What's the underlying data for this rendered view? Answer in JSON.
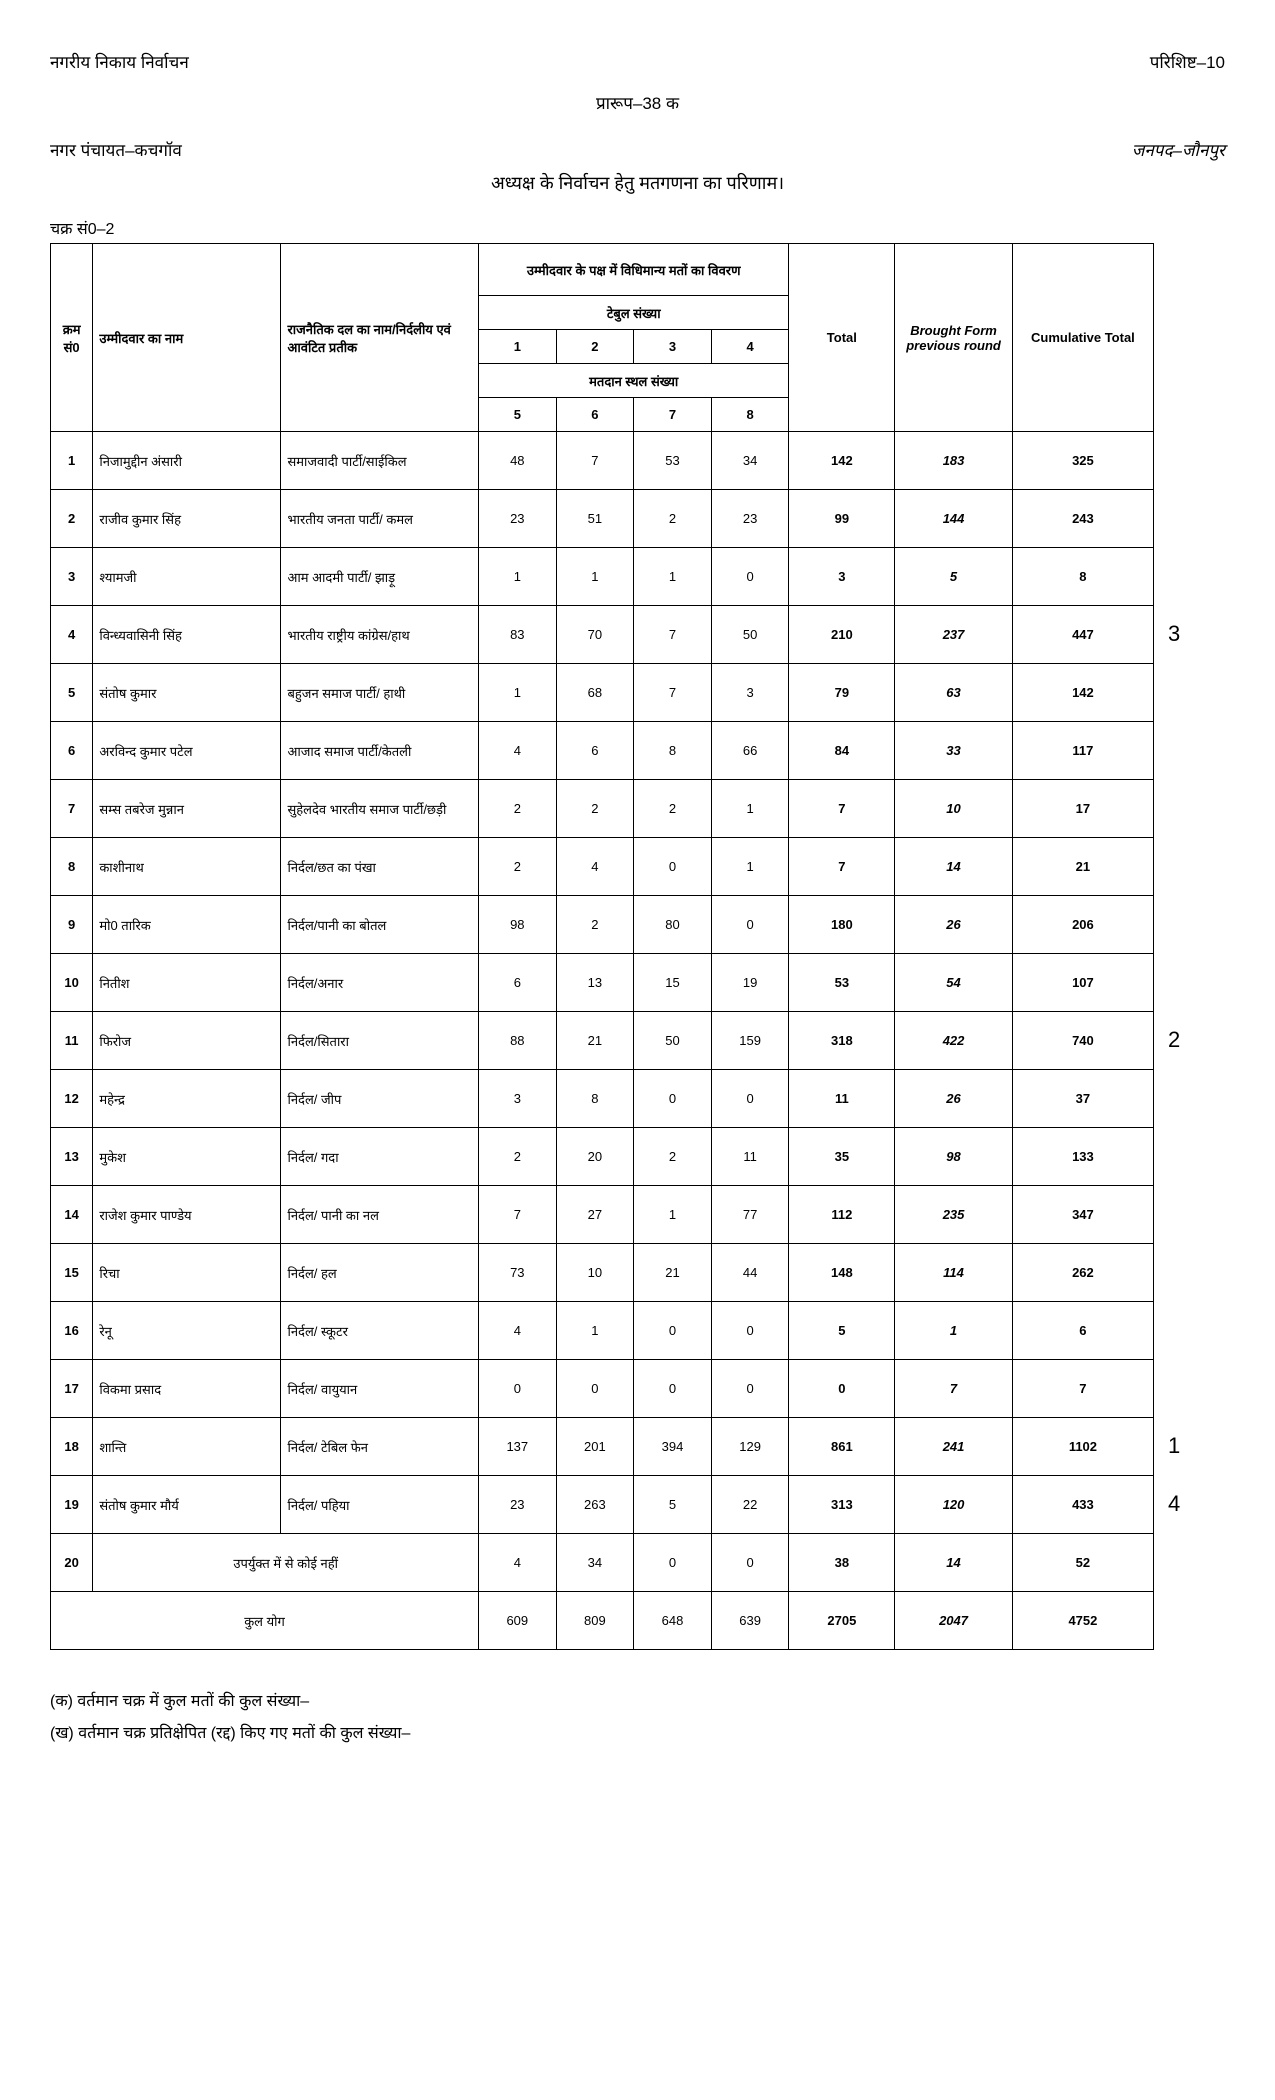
{
  "header": {
    "left": "नगरीय निकाय निर्वाचन",
    "right": "परिशिष्ट–10",
    "form_label": "प्रारूप–38 क",
    "panchayat": "नगर पंचायत–कचगॉव",
    "district": "जनपद–जौनपुर",
    "main_title": "अध्यक्ष के निर्वाचन हेतु मतगणना का परिणाम।",
    "round_label": "चक्र सं0–2"
  },
  "columns": {
    "sn": "क्रम सं0",
    "candidate": "उम्मीदवार का नाम",
    "party": "राजनैतिक दल का नाम/निर्दलीय एवं आवंटित प्रतीक",
    "votes_header": "उम्मीदवार के पक्ष में विधिमान्य मतों का विवरण",
    "table_no": "टेबुल संख्या",
    "booth_no": "मतदान स्थल संख्या",
    "t1": "1",
    "t2": "2",
    "t3": "3",
    "t4": "4",
    "b1": "5",
    "b2": "6",
    "b3": "7",
    "b4": "8",
    "total": "Total",
    "prev": "Brought Form previous round",
    "cum": "Cumulative Total"
  },
  "rows": [
    {
      "sn": "1",
      "name": "निजामुद्दीन अंसारी",
      "party": "समाजवादी पार्टी/साईकिल",
      "v": [
        48,
        7,
        53,
        34
      ],
      "total": 142,
      "prev": 183,
      "cum": 325,
      "rank": ""
    },
    {
      "sn": "2",
      "name": "राजीव कुमार सिंह",
      "party": "भारतीय जनता पार्टी/ कमल",
      "v": [
        23,
        51,
        2,
        23
      ],
      "total": 99,
      "prev": 144,
      "cum": 243,
      "rank": ""
    },
    {
      "sn": "3",
      "name": "श्यामजी",
      "party": "आम आदमी पार्टी/ झाड़ू",
      "v": [
        1,
        1,
        1,
        0
      ],
      "total": 3,
      "prev": 5,
      "cum": 8,
      "rank": ""
    },
    {
      "sn": "4",
      "name": "विन्ध्यवासिनी सिंह",
      "party": "भारतीय राष्ट्रीय कांग्रेस/हाथ",
      "v": [
        83,
        70,
        7,
        50
      ],
      "total": 210,
      "prev": 237,
      "cum": 447,
      "rank": "3"
    },
    {
      "sn": "5",
      "name": "संतोष कुमार",
      "party": "बहुजन समाज पार्टी/ हाथी",
      "v": [
        1,
        68,
        7,
        3
      ],
      "total": 79,
      "prev": 63,
      "cum": 142,
      "rank": ""
    },
    {
      "sn": "6",
      "name": "अरविन्द कुमार पटेल",
      "party": "आजाद समाज पार्टी/केतली",
      "v": [
        4,
        6,
        8,
        66
      ],
      "total": 84,
      "prev": 33,
      "cum": 117,
      "rank": ""
    },
    {
      "sn": "7",
      "name": "सम्स तबरेज मुन्नान",
      "party": "सुहेलदेव भारतीय समाज पार्टी/छड़ी",
      "v": [
        2,
        2,
        2,
        1
      ],
      "total": 7,
      "prev": 10,
      "cum": 17,
      "rank": ""
    },
    {
      "sn": "8",
      "name": "काशीनाथ",
      "party": "निर्दल/छत का पंखा",
      "v": [
        2,
        4,
        0,
        1
      ],
      "total": 7,
      "prev": 14,
      "cum": 21,
      "rank": ""
    },
    {
      "sn": "9",
      "name": "मो0 तारिक",
      "party": "निर्दल/पानी का बोतल",
      "v": [
        98,
        2,
        80,
        0
      ],
      "total": 180,
      "prev": 26,
      "cum": 206,
      "rank": ""
    },
    {
      "sn": "10",
      "name": "नितीश",
      "party": "निर्दल/अनार",
      "v": [
        6,
        13,
        15,
        19
      ],
      "total": 53,
      "prev": 54,
      "cum": 107,
      "rank": ""
    },
    {
      "sn": "11",
      "name": "फिरोज",
      "party": "निर्दल/सितारा",
      "v": [
        88,
        21,
        50,
        159
      ],
      "total": 318,
      "prev": 422,
      "cum": 740,
      "rank": "2"
    },
    {
      "sn": "12",
      "name": "महेन्द्र",
      "party": "निर्दल/ जीप",
      "v": [
        3,
        8,
        0,
        0
      ],
      "total": 11,
      "prev": 26,
      "cum": 37,
      "rank": ""
    },
    {
      "sn": "13",
      "name": "मुकेश",
      "party": "निर्दल/ गदा",
      "v": [
        2,
        20,
        2,
        11
      ],
      "total": 35,
      "prev": 98,
      "cum": 133,
      "rank": ""
    },
    {
      "sn": "14",
      "name": "राजेश कुमार पाण्डेय",
      "party": "निर्दल/ पानी का नल",
      "v": [
        7,
        27,
        1,
        77
      ],
      "total": 112,
      "prev": 235,
      "cum": 347,
      "rank": ""
    },
    {
      "sn": "15",
      "name": "रिचा",
      "party": "निर्दल/ हल",
      "v": [
        73,
        10,
        21,
        44
      ],
      "total": 148,
      "prev": 114,
      "cum": 262,
      "rank": ""
    },
    {
      "sn": "16",
      "name": "रेनू",
      "party": "निर्दल/ स्कूटर",
      "v": [
        4,
        1,
        0,
        0
      ],
      "total": 5,
      "prev": 1,
      "cum": 6,
      "rank": ""
    },
    {
      "sn": "17",
      "name": "विकमा प्रसाद",
      "party": "निर्दल/ वायुयान",
      "v": [
        0,
        0,
        0,
        0
      ],
      "total": 0,
      "prev": 7,
      "cum": 7,
      "rank": ""
    },
    {
      "sn": "18",
      "name": "शान्ति",
      "party": "निर्दल/ टेबिल फेन",
      "v": [
        137,
        201,
        394,
        129
      ],
      "total": 861,
      "prev": 241,
      "cum": 1102,
      "rank": "1"
    },
    {
      "sn": "19",
      "name": "संतोष कुमार मौर्य",
      "party": "निर्दल/ पहिया",
      "v": [
        23,
        263,
        5,
        22
      ],
      "total": 313,
      "prev": 120,
      "cum": 433,
      "rank": "4"
    }
  ],
  "nota": {
    "sn": "20",
    "label": "उपर्युक्त में से कोई नहीं",
    "v": [
      4,
      34,
      0,
      0
    ],
    "total": 38,
    "prev": 14,
    "cum": 52
  },
  "grand": {
    "label": "कुल योग",
    "v": [
      609,
      809,
      648,
      639
    ],
    "total": 2705,
    "prev": 2047,
    "cum": 4752
  },
  "footer": {
    "a": "(क)  वर्तमान चक्र में कुल मतों की कुल संख्या–",
    "b": "(ख)  वर्तमान चक्र प्रतिक्षेपित (रद्द) किए गए मतों की कुल संख्या–"
  }
}
